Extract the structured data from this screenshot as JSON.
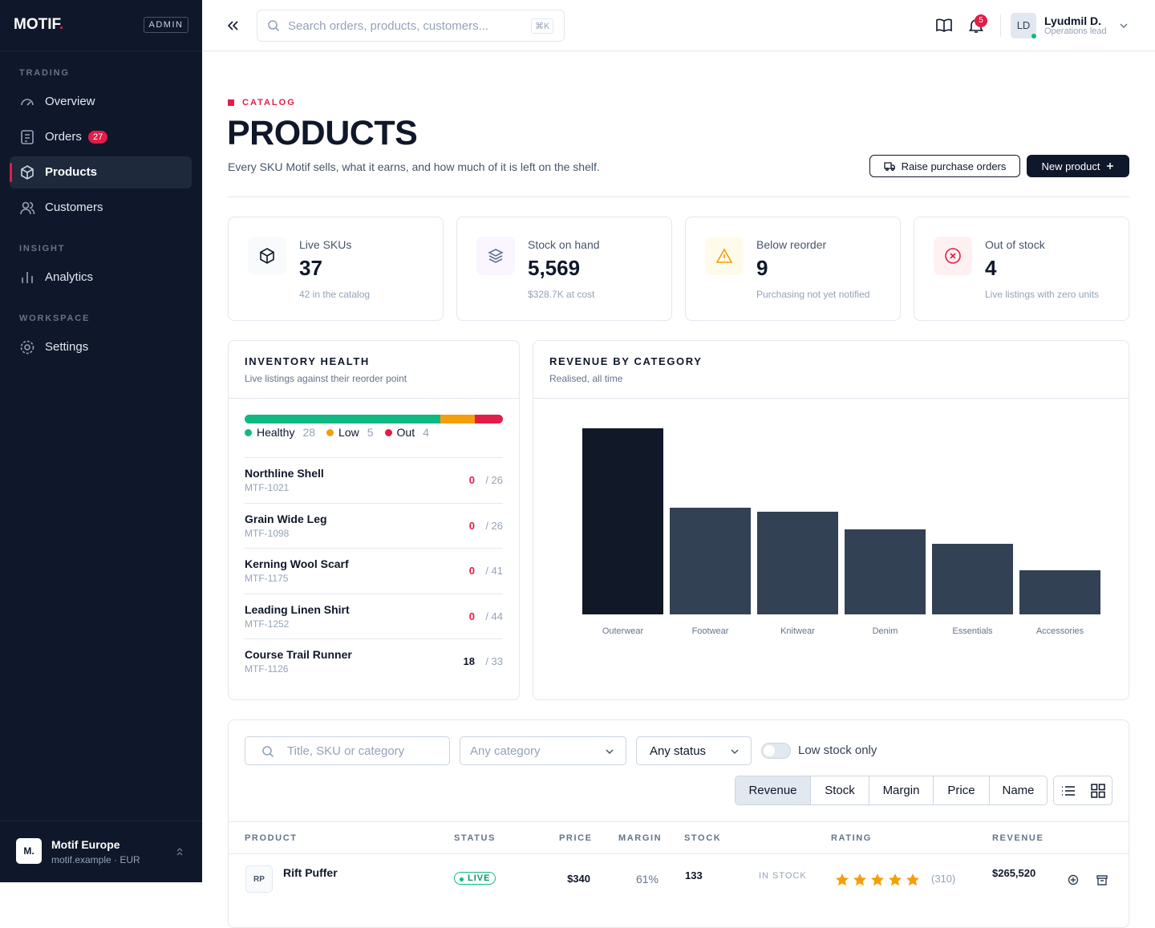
{
  "sidebar": {
    "brand": "MOTIF",
    "badge": "ADMIN",
    "sections": [
      {
        "title": "TRADING",
        "items": [
          {
            "label": "Overview"
          },
          {
            "label": "Orders",
            "count": 27
          },
          {
            "label": "Products"
          },
          {
            "label": "Customers"
          }
        ]
      },
      {
        "title": "INSIGHT",
        "items": [
          {
            "label": "Analytics"
          }
        ]
      },
      {
        "title": "WORKSPACE",
        "items": [
          {
            "label": "Settings"
          }
        ]
      }
    ],
    "org": {
      "initial": "M.",
      "name": "Motif Europe",
      "sub": "motif.example · EUR"
    }
  },
  "topbar": {
    "search_placeholder": "Search orders, products, customers...",
    "shortcut": "⌘K",
    "notifications": 5,
    "user": {
      "initials": "LD",
      "name": "Lyudmil D.",
      "role": "Operations lead"
    }
  },
  "header": {
    "eyebrow": "CATALOG",
    "title": "PRODUCTS",
    "subtitle": "Every SKU Motif sells, what it earns, and how much of it is left on the shelf.",
    "actions": [
      "Raise purchase orders",
      "New product"
    ]
  },
  "stats": [
    {
      "label": "Live SKUs",
      "value": "37",
      "note": "42 in the catalog"
    },
    {
      "label": "Stock on hand",
      "value": "5,569",
      "note": "$328.7K at cost"
    },
    {
      "label": "Below reorder",
      "value": "9",
      "note": "Purchasing not yet notified"
    },
    {
      "label": "Out of stock",
      "value": "4",
      "note": "Live listings with zero units"
    }
  ],
  "inventory": {
    "title": "INVENTORY HEALTH",
    "subtitle": "Live listings against their reorder point",
    "segments": [
      {
        "name": "Healthy",
        "value": 28,
        "color": "#10b981"
      },
      {
        "name": "Low",
        "value": 5,
        "color": "#f59e0b"
      },
      {
        "name": "Out",
        "value": 4,
        "color": "#e11d48"
      }
    ],
    "items": [
      {
        "name": "Northline Shell",
        "sku": "MTF-1021",
        "stock": 0,
        "reorder": "/ 26"
      },
      {
        "name": "Grain Wide Leg",
        "sku": "MTF-1098",
        "stock": 0,
        "reorder": "/ 26"
      },
      {
        "name": "Kerning Wool Scarf",
        "sku": "MTF-1175",
        "stock": 0,
        "reorder": "/ 41"
      },
      {
        "name": "Leading Linen Shirt",
        "sku": "MTF-1252",
        "stock": 0,
        "reorder": "/ 44"
      },
      {
        "name": "Course Trail Runner",
        "sku": "MTF-1126",
        "stock": 18,
        "reorder": "/ 33"
      }
    ]
  },
  "chart_data": {
    "type": "bar",
    "title": "REVENUE BY CATEGORY",
    "subtitle": "Realised, all time",
    "categories": [
      "Outerwear",
      "Footwear",
      "Knitwear",
      "Denim",
      "Essentials",
      "Accessories"
    ],
    "values": [
      232,
      133,
      128,
      106,
      88,
      55
    ],
    "colors": [
      "#111827",
      "#334155",
      "#334155",
      "#334155",
      "#334155",
      "#334155"
    ]
  },
  "table": {
    "filters": {
      "search_placeholder": "Title, SKU or category",
      "category": "Any category",
      "status": "Any status",
      "toggle": "Low stock only"
    },
    "sort": [
      "Revenue",
      "Stock",
      "Margin",
      "Price",
      "Name"
    ],
    "columns": [
      "PRODUCT",
      "STATUS",
      "PRICE",
      "MARGIN",
      "STOCK",
      "RATING",
      "REVENUE"
    ],
    "rows": [
      {
        "initials": "RP",
        "name": "Rift Puffer",
        "status": "LIVE",
        "price": "$340",
        "margin": "61%",
        "stock": "133",
        "stock_status": "IN STOCK",
        "rating": 5,
        "reviews": "(310)",
        "revenue": "$265,520"
      }
    ]
  }
}
